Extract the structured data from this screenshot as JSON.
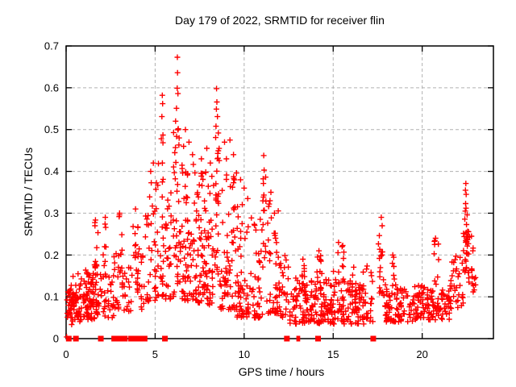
{
  "window": {
    "background": "#ffffff"
  },
  "chart_data": {
    "type": "scatter",
    "title": "Day 179 of 2022, SRMTID for receiver flin",
    "xlabel": "GPS time / hours",
    "ylabel": "SRMTID / TECUs",
    "xlim": [
      0,
      24
    ],
    "ylim": [
      0,
      0.7
    ],
    "xticks": [
      0,
      5,
      10,
      15,
      20
    ],
    "xtick_labels": [
      "0",
      "5",
      "10",
      "15",
      "20"
    ],
    "yticks": [
      0,
      0.1,
      0.2,
      0.3,
      0.4,
      0.5,
      0.6,
      0.7
    ],
    "ytick_labels": [
      "0",
      "0.1",
      "0.2",
      "0.3",
      "0.4",
      "0.5",
      "0.6",
      "0.7"
    ],
    "grid": true,
    "legend": "none",
    "marker": {
      "shape": "plus",
      "color": "#ff0000",
      "size": 7,
      "stroke_width": 1.4
    },
    "zero_marker": {
      "shape": "filled-square",
      "color": "#ff0000",
      "size": 7
    },
    "grid_color": "#b0b0b0",
    "border_color": "#000000",
    "clusters": [
      [
        0.02,
        0.95,
        60,
        0.05,
        0.135,
        1.2
      ],
      [
        0.02,
        0.95,
        18,
        0.03,
        0.17,
        1
      ],
      [
        0.95,
        1.85,
        70,
        0.045,
        0.155,
        1.2
      ],
      [
        0.95,
        1.85,
        15,
        0.03,
        0.19,
        1
      ],
      [
        1.55,
        1.8,
        9,
        0.17,
        0.285,
        1
      ],
      [
        2.05,
        2.3,
        8,
        0.15,
        0.295,
        1
      ],
      [
        1.9,
        2.7,
        30,
        0.05,
        0.155,
        1.2
      ],
      [
        2.65,
        3.0,
        16,
        0.07,
        0.21,
        1.1
      ],
      [
        2.9,
        3.15,
        10,
        0.14,
        0.3,
        1
      ],
      [
        3.1,
        3.7,
        22,
        0.06,
        0.18,
        1.2
      ],
      [
        3.75,
        4.05,
        18,
        0.1,
        0.3,
        1
      ],
      [
        4.05,
        4.65,
        20,
        0.07,
        0.22,
        1.2
      ],
      [
        4.45,
        4.62,
        5,
        0.22,
        0.3,
        1
      ],
      [
        4.6,
        5.2,
        35,
        0.09,
        0.44,
        1.5
      ],
      [
        5.3,
        5.5,
        20,
        0.1,
        0.5,
        1.4
      ],
      [
        5.5,
        5.9,
        25,
        0.08,
        0.35,
        1.4
      ],
      [
        6.0,
        6.45,
        40,
        0.1,
        0.5,
        1.3
      ],
      [
        6.5,
        7.4,
        75,
        0.09,
        0.42,
        1.5
      ],
      [
        7.4,
        8.3,
        85,
        0.08,
        0.4,
        1.5
      ],
      [
        8.35,
        8.65,
        25,
        0.12,
        0.46,
        1.2
      ],
      [
        8.65,
        9.6,
        70,
        0.07,
        0.4,
        1.6
      ],
      [
        9.6,
        10.5,
        55,
        0.05,
        0.33,
        1.7
      ],
      [
        10.5,
        11.05,
        40,
        0.05,
        0.3,
        1.8
      ],
      [
        11.05,
        11.25,
        14,
        0.18,
        0.41,
        1
      ],
      [
        11.25,
        12.0,
        45,
        0.06,
        0.33,
        1.8
      ],
      [
        12.0,
        12.5,
        25,
        0.05,
        0.2,
        1.5
      ],
      [
        12.5,
        17.3,
        255,
        0.035,
        0.135,
        1.2
      ],
      [
        12.5,
        17.3,
        25,
        0.13,
        0.175,
        1
      ],
      [
        13.25,
        13.4,
        6,
        0.14,
        0.19,
        1
      ],
      [
        14.1,
        14.35,
        8,
        0.13,
        0.21,
        1
      ],
      [
        15.25,
        15.6,
        8,
        0.13,
        0.235,
        1
      ],
      [
        17.5,
        17.85,
        18,
        0.1,
        0.265,
        1
      ],
      [
        17.85,
        19.5,
        85,
        0.04,
        0.13,
        1.2
      ],
      [
        18.3,
        18.45,
        5,
        0.13,
        0.2,
        1
      ],
      [
        19.5,
        21.6,
        115,
        0.045,
        0.13,
        1.2
      ],
      [
        20.65,
        20.95,
        7,
        0.13,
        0.24,
        1
      ],
      [
        21.6,
        22.3,
        30,
        0.07,
        0.2,
        1.3
      ],
      [
        22.3,
        22.6,
        22,
        0.15,
        0.3,
        1
      ],
      [
        22.45,
        22.62,
        10,
        0.2,
        0.26,
        1
      ],
      [
        22.6,
        23.05,
        18,
        0.1,
        0.25,
        1.2
      ]
    ],
    "points": [
      [
        0.03,
        0.004
      ],
      [
        1.62,
        0.27
      ],
      [
        2.2,
        0.29
      ],
      [
        3.0,
        0.3
      ],
      [
        3.9,
        0.31
      ],
      [
        4.75,
        0.4
      ],
      [
        4.9,
        0.42
      ],
      [
        5.4,
        0.582
      ],
      [
        5.42,
        0.562
      ],
      [
        5.38,
        0.531
      ],
      [
        5.44,
        0.487
      ],
      [
        5.35,
        0.478
      ],
      [
        6.25,
        0.673
      ],
      [
        6.26,
        0.636
      ],
      [
        6.24,
        0.599
      ],
      [
        6.28,
        0.586
      ],
      [
        6.2,
        0.551
      ],
      [
        6.3,
        0.502
      ],
      [
        6.15,
        0.52
      ],
      [
        6.35,
        0.48
      ],
      [
        6.7,
        0.5
      ],
      [
        6.6,
        0.46
      ],
      [
        6.9,
        0.47
      ],
      [
        7.1,
        0.44
      ],
      [
        7.6,
        0.43
      ],
      [
        7.9,
        0.455
      ],
      [
        8.1,
        0.42
      ],
      [
        8.45,
        0.598
      ],
      [
        8.47,
        0.566
      ],
      [
        8.44,
        0.549
      ],
      [
        8.5,
        0.531
      ],
      [
        8.42,
        0.508
      ],
      [
        8.55,
        0.492
      ],
      [
        8.4,
        0.481
      ],
      [
        8.52,
        0.443
      ],
      [
        8.9,
        0.47
      ],
      [
        9.2,
        0.475
      ],
      [
        9.4,
        0.44
      ],
      [
        9.0,
        0.43
      ],
      [
        9.8,
        0.38
      ],
      [
        10.0,
        0.36
      ],
      [
        10.2,
        0.335
      ],
      [
        11.1,
        0.438
      ],
      [
        11.12,
        0.403
      ],
      [
        11.08,
        0.371
      ],
      [
        11.5,
        0.35
      ],
      [
        11.45,
        0.33
      ],
      [
        11.7,
        0.3
      ],
      [
        13.3,
        0.19
      ],
      [
        14.2,
        0.21
      ],
      [
        15.3,
        0.23
      ],
      [
        15.5,
        0.22
      ],
      [
        17.7,
        0.29
      ],
      [
        17.75,
        0.27
      ],
      [
        18.35,
        0.2
      ],
      [
        20.7,
        0.225
      ],
      [
        20.75,
        0.24
      ],
      [
        22.45,
        0.371
      ],
      [
        22.43,
        0.355
      ],
      [
        22.47,
        0.345
      ],
      [
        22.44,
        0.323
      ],
      [
        22.46,
        0.312
      ],
      [
        22.42,
        0.305
      ]
    ],
    "zero_markers": [
      [
        0.15,
        7
      ],
      [
        0.55,
        7
      ],
      [
        1.95,
        7
      ],
      [
        2.7,
        7
      ],
      [
        2.8,
        7
      ],
      [
        2.9,
        7
      ],
      [
        3.0,
        7
      ],
      [
        3.1,
        7
      ],
      [
        3.2,
        7
      ],
      [
        3.3,
        7
      ],
      [
        3.65,
        7
      ],
      [
        3.95,
        7
      ],
      [
        4.15,
        7
      ],
      [
        4.3,
        7
      ],
      [
        4.42,
        3
      ],
      [
        4.5,
        3
      ],
      [
        5.55,
        7
      ],
      [
        12.4,
        7
      ],
      [
        13.0,
        3
      ],
      [
        13.08,
        3
      ],
      [
        14.15,
        7
      ],
      [
        17.25,
        7
      ]
    ]
  }
}
